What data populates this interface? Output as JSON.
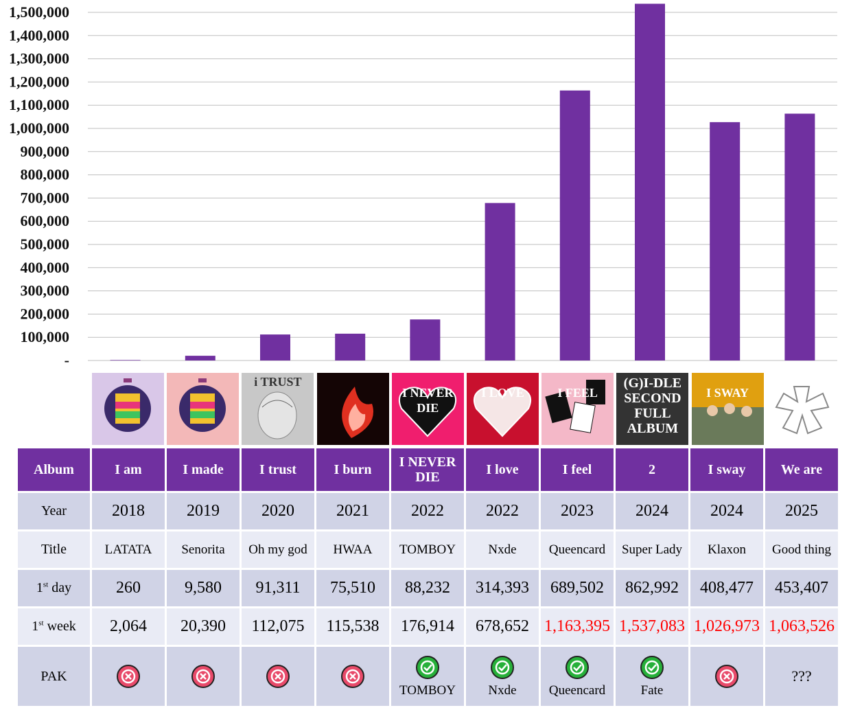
{
  "chart_data": {
    "type": "bar",
    "categories": [
      "I am",
      "I made",
      "I trust",
      "I burn",
      "I NEVER DIE",
      "I love",
      "I feel",
      "2",
      "I sway",
      "We are"
    ],
    "values": [
      2064,
      20390,
      112075,
      115538,
      176914,
      678652,
      1163395,
      1537083,
      1026973,
      1063526
    ],
    "ylim": [
      0,
      1500000
    ],
    "yticks": [
      "-",
      "100,000",
      "200,000",
      "300,000",
      "400,000",
      "500,000",
      "600,000",
      "700,000",
      "800,000",
      "900,000",
      "1,000,000",
      "1,100,000",
      "1,200,000",
      "1,300,000",
      "1,400,000",
      "1,500,000"
    ],
    "grid": true,
    "bar_color": "#7030a0"
  },
  "table": {
    "header_label": "Album",
    "row_labels": {
      "year": "Year",
      "title": "Title",
      "day_num": "1",
      "day_sup": "st",
      "day_word": " day",
      "week_num": "1",
      "week_sup": "st",
      "week_word": " week",
      "pak": "PAK"
    },
    "albums": [
      {
        "album": "I am",
        "year": "2018",
        "title": "LATATA",
        "day": "260",
        "week": "2,064",
        "week_red": false,
        "pak": "x",
        "pak_song": ""
      },
      {
        "album": "I made",
        "year": "2019",
        "title": "Senorita",
        "day": "9,580",
        "week": "20,390",
        "week_red": false,
        "pak": "x",
        "pak_song": ""
      },
      {
        "album": "I trust",
        "year": "2020",
        "title": "Oh my god",
        "day": "91,311",
        "week": "112,075",
        "week_red": false,
        "pak": "x",
        "pak_song": ""
      },
      {
        "album": "I burn",
        "year": "2021",
        "title": "HWAA",
        "day": "75,510",
        "week": "115,538",
        "week_red": false,
        "pak": "x",
        "pak_song": ""
      },
      {
        "album": "I NEVER DIE",
        "year": "2022",
        "title": "TOMBOY",
        "day": "88,232",
        "week": "176,914",
        "week_red": false,
        "pak": "check",
        "pak_song": "TOMBOY"
      },
      {
        "album": "I love",
        "year": "2022",
        "title": "Nxde",
        "day": "314,393",
        "week": "678,652",
        "week_red": false,
        "pak": "check",
        "pak_song": "Nxde"
      },
      {
        "album": "I feel",
        "year": "2023",
        "title": "Queencard",
        "day": "689,502",
        "week": "1,163,395",
        "week_red": true,
        "pak": "check",
        "pak_song": "Queencard"
      },
      {
        "album": "2",
        "year": "2024",
        "title": "Super Lady",
        "day": "862,992",
        "week": "1,537,083",
        "week_red": true,
        "pak": "check",
        "pak_song": "Fate"
      },
      {
        "album": "I sway",
        "year": "2024",
        "title": "Klaxon",
        "day": "408,477",
        "week": "1,026,973",
        "week_red": true,
        "pak": "x",
        "pak_song": ""
      },
      {
        "album": "We are",
        "year": "2025",
        "title": "Good thing",
        "day": "453,407",
        "week": "1,063,526",
        "week_red": true,
        "pak": "unknown",
        "pak_text": "???"
      }
    ]
  },
  "covers": [
    {
      "label": "",
      "bg": "#d9c7e8",
      "icon": "cube-cover"
    },
    {
      "label": "",
      "bg": "#f3b8b8",
      "icon": "cube-cover"
    },
    {
      "label": "i TRUST",
      "bg": "#c8c8c8",
      "icon": "wings-cover"
    },
    {
      "label": "",
      "bg": "#140505",
      "icon": "fire-cover"
    },
    {
      "label": "I NEVER DIE",
      "bg": "#f01e6e",
      "icon": "heart-cover"
    },
    {
      "label": "I LOVE",
      "bg": "#c8102e",
      "icon": "heart-cover"
    },
    {
      "label": "I FEEL",
      "bg": "#f4b8c8",
      "icon": "cards-cover"
    },
    {
      "label": "(G)I-DLE SECOND FULL ALBUM",
      "bg": "#333333",
      "icon": "text-cover"
    },
    {
      "label": "I SWAY",
      "bg": "#e0a010",
      "icon": "group-cover"
    },
    {
      "label": "",
      "bg": "#ffffff",
      "icon": "logo-cover"
    }
  ],
  "colors": {
    "purple": "#7030a0",
    "row_dark": "#d0d3e6",
    "row_light": "#e9ebf5",
    "check": "#27b03a",
    "cross": "#e84a6a",
    "red": "#ff0000"
  }
}
